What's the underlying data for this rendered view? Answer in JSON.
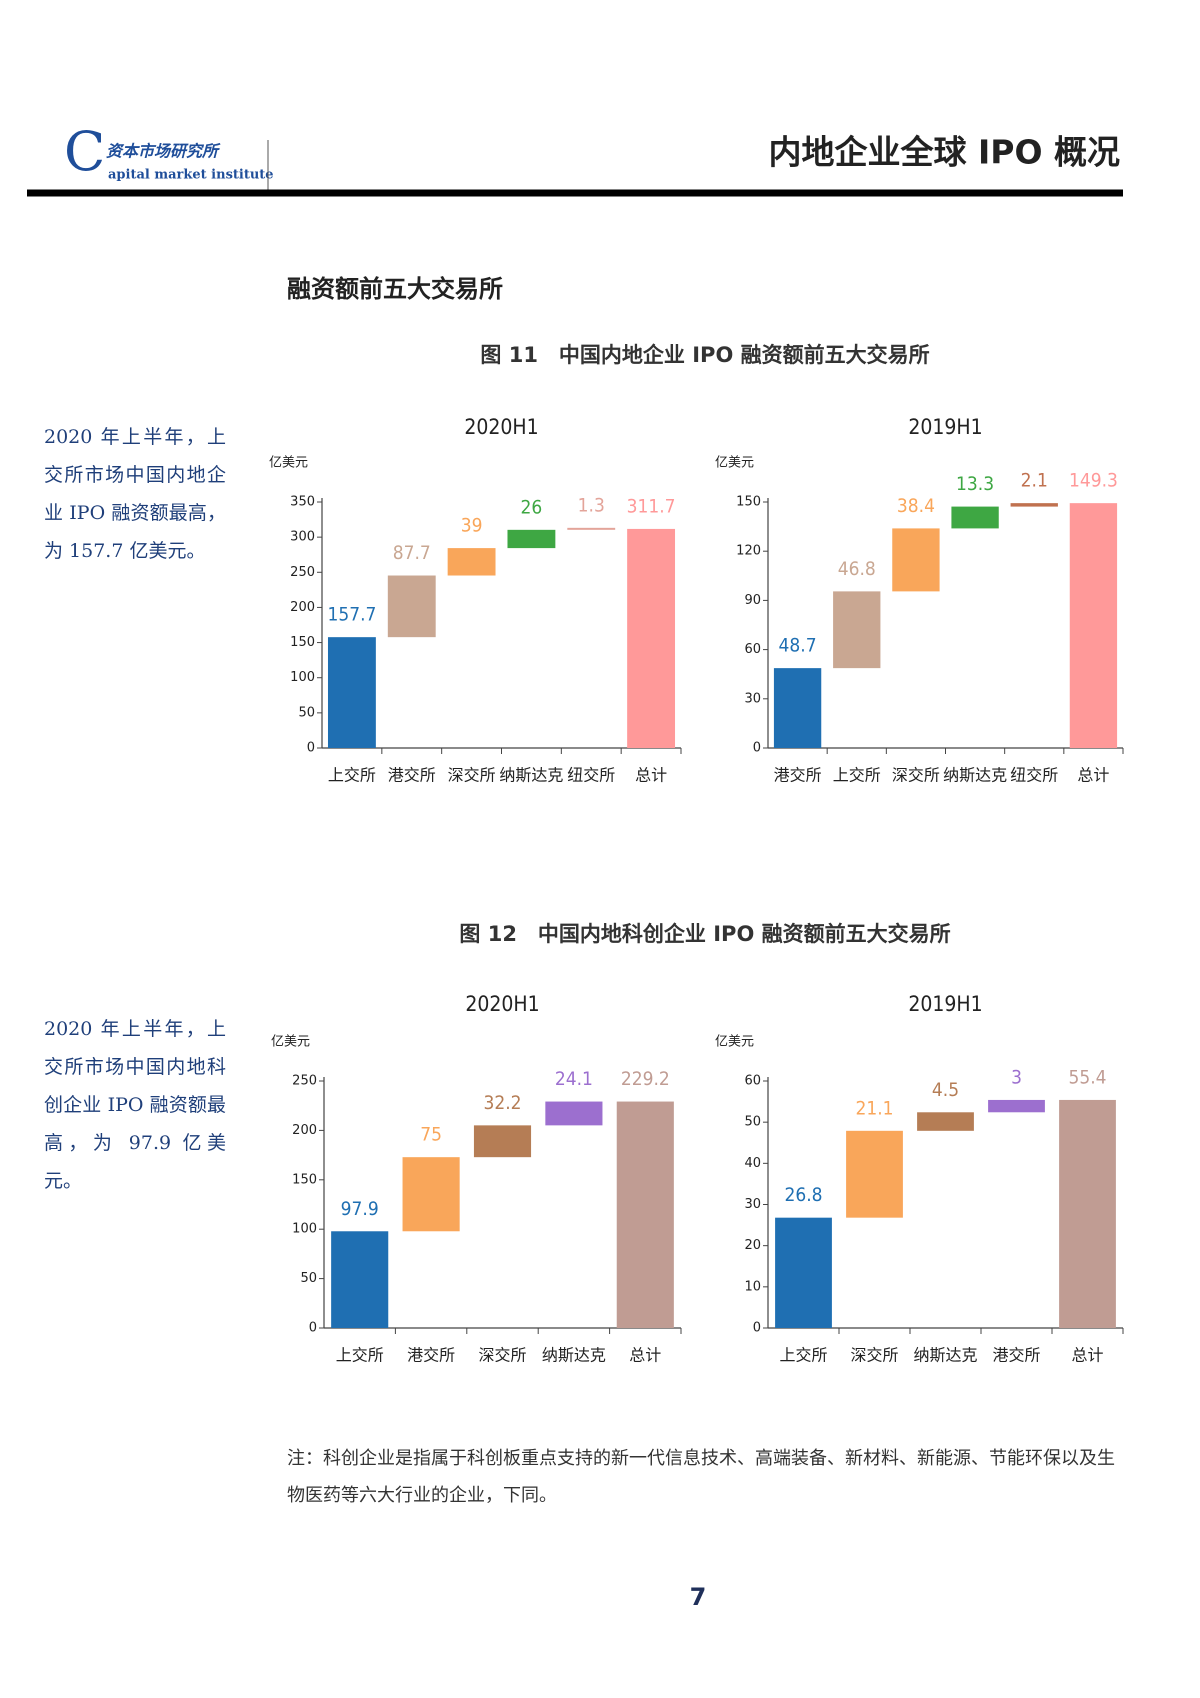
{
  "header": {
    "logo_letter": "C",
    "logo_cn": "资本市场研究所",
    "logo_en": "apital market institute",
    "title": "内地企业全球 IPO 概况"
  },
  "section_title": "融资额前五大交易所",
  "figures": [
    {
      "title": "图 11　中国内地企业 IPO 融资额前五大交易所",
      "side_note": "2020 年上半年，上交所市场中国内地企业 IPO 融资额最高，为 157.7 亿美元。"
    },
    {
      "title": "图 12　中国内地科创企业 IPO 融资额前五大交易所",
      "side_note": "2020 年上半年，上交所市场中国内地科创企业 IPO 融资额最高，为 97.9 亿美元。"
    }
  ],
  "chart_data": [
    {
      "type": "waterfall",
      "title": "2020H1",
      "y_label": "亿美元",
      "categories": [
        "上交所",
        "港交所",
        "深交所",
        "纳斯达克",
        "纽交所",
        "总计"
      ],
      "values": [
        157.7,
        87.7,
        39,
        26,
        1.3,
        311.7
      ],
      "colors": [
        "#1f6fb2",
        "#c9a792",
        "#f9a65a",
        "#3ea743",
        "#e3a49a",
        "#ff9999"
      ],
      "ylim": [
        0,
        350
      ],
      "yticks": [
        0,
        50,
        100,
        150,
        200,
        250,
        300,
        350
      ]
    },
    {
      "type": "waterfall",
      "title": "2019H1",
      "y_label": "亿美元",
      "categories": [
        "港交所",
        "上交所",
        "深交所",
        "纳斯达克",
        "纽交所",
        "总计"
      ],
      "values": [
        48.7,
        46.8,
        38.4,
        13.3,
        2.1,
        149.3
      ],
      "colors": [
        "#1f6fb2",
        "#c9a792",
        "#f9a65a",
        "#3ea743",
        "#c0714f",
        "#ff9999"
      ],
      "ylim": [
        0,
        150
      ],
      "yticks": [
        0,
        30,
        60,
        90,
        120,
        150
      ]
    },
    {
      "type": "waterfall",
      "title": "2020H1",
      "y_label": "亿美元",
      "categories": [
        "上交所",
        "港交所",
        "深交所",
        "纳斯达克",
        "总计"
      ],
      "values": [
        97.9,
        75,
        32.2,
        24.1,
        229.2
      ],
      "colors": [
        "#1f6fb2",
        "#f9a65a",
        "#b57d55",
        "#9c6fcf",
        "#c09c93"
      ],
      "ylim": [
        0,
        250
      ],
      "yticks": [
        0,
        50,
        100,
        150,
        200,
        250
      ]
    },
    {
      "type": "waterfall",
      "title": "2019H1",
      "y_label": "亿美元",
      "categories": [
        "上交所",
        "深交所",
        "纳斯达克",
        "港交所",
        "总计"
      ],
      "values": [
        26.8,
        21.1,
        4.5,
        3,
        55.4
      ],
      "colors": [
        "#1f6fb2",
        "#f9a65a",
        "#b57d55",
        "#9c6fcf",
        "#c09c93"
      ],
      "ylim": [
        0,
        60
      ],
      "yticks": [
        0,
        10,
        20,
        30,
        40,
        50,
        60
      ]
    }
  ],
  "note": "注：科创企业是指属于科创板重点支持的新一代信息技术、高端装备、新材料、新能源、节能环保以及生物医药等六大行业的企业，下同。",
  "page_number": "7"
}
